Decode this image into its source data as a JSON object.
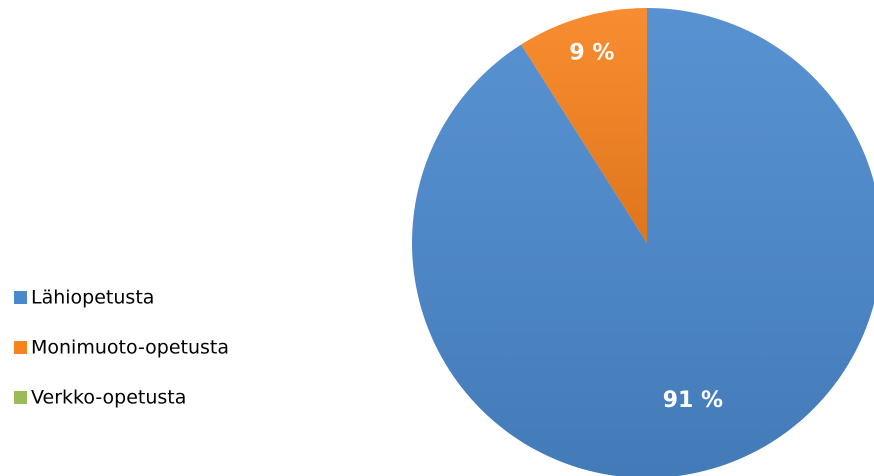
{
  "chart_data": {
    "type": "pie",
    "categories": [
      "Lähiopetusta",
      "Monimuoto-opetusta",
      "Verkko-opetusta"
    ],
    "values": [
      91,
      9,
      0
    ],
    "value_labels": [
      "91 %",
      "9 %",
      null
    ],
    "colors": [
      "#4a88cd",
      "#f7821e",
      "#9bbb59"
    ],
    "legend": "left"
  }
}
